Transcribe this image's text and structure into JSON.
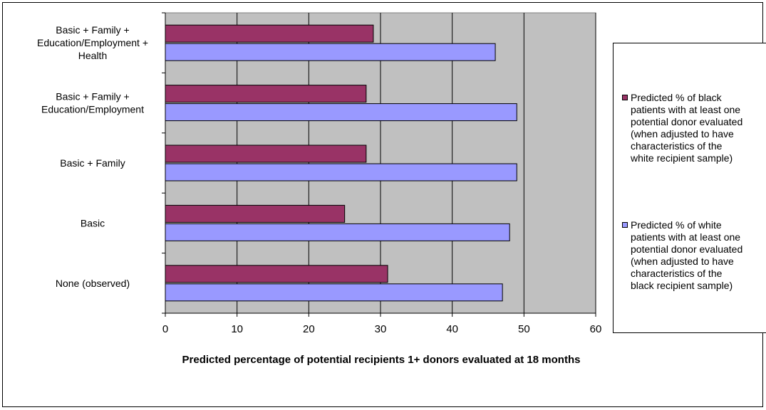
{
  "chart_data": {
    "type": "bar",
    "orientation": "horizontal",
    "categories": [
      "Basic + Family +\nEducation/Employment +\nHealth",
      "Basic + Family +\nEducation/Employment",
      "Basic + Family",
      "Basic",
      "None (observed)"
    ],
    "series": [
      {
        "name": "Predicted % of black patients with at least one potential donor evaluated (when adjusted to have characteristics of the white recipient sample)",
        "color": "#993366",
        "values": [
          29,
          28,
          28,
          25,
          31
        ]
      },
      {
        "name": "Predicted % of white patients with at least one potential donor evaluated (when adjusted to have characteristics of the black recipient sample)",
        "color": "#9999ff",
        "values": [
          46,
          49,
          49,
          48,
          47
        ]
      }
    ],
    "xlabel": "Predicted percentage of potential recipients 1+ donors evaluated at 18 months",
    "xlim": [
      0,
      60
    ],
    "xticks": [
      0,
      10,
      20,
      30,
      40,
      50,
      60
    ],
    "grid": true,
    "plot_background": "#c0c0c0",
    "legend_position": "right"
  },
  "legend": {
    "item1": "Predicted % of black\npatients with at least one\npotential donor evaluated\n(when adjusted to have\ncharacteristics of the\nwhite recipient sample)",
    "item2": "Predicted % of white\npatients with at least one\npotential donor evaluated\n(when adjusted to have\ncharacteristics of the\nblack recipient sample)"
  }
}
